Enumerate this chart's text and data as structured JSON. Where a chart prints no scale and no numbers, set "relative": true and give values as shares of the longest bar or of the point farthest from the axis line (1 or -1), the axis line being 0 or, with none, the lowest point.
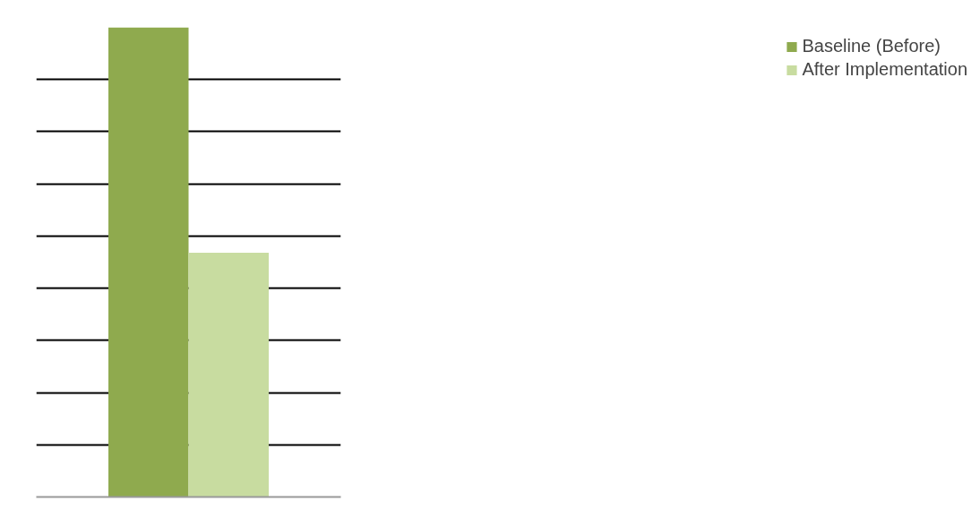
{
  "chart_data": {
    "type": "bar",
    "relative": true,
    "categories": [
      null
    ],
    "series": [
      {
        "name": "Baseline (Before)",
        "color": "#8faa4e",
        "values": [
          1
        ]
      },
      {
        "name": "After Implementation",
        "color": "#c8dca0",
        "values": [
          0.52
        ]
      }
    ],
    "grid": "y",
    "legend": "right"
  }
}
